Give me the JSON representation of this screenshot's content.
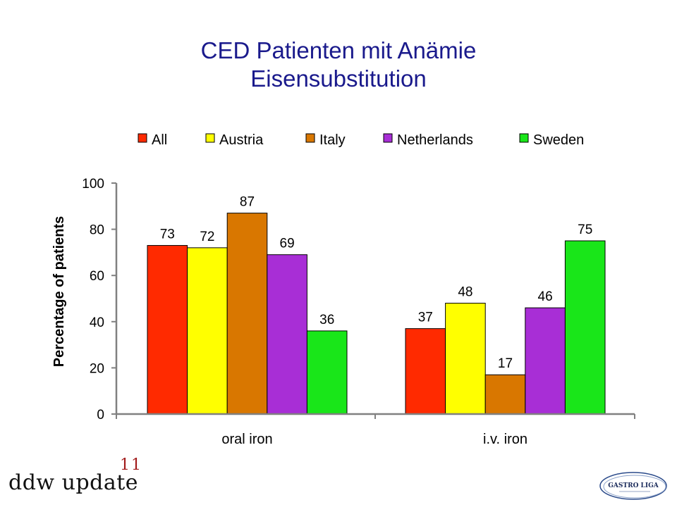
{
  "title": {
    "line1": "CED Patienten mit Anämie",
    "line2": "Eisensubstitution"
  },
  "footer": {
    "text": "ddw update",
    "superscript": "11",
    "logo_text": "GASTRO LIGA"
  },
  "colors": {
    "title": "#1a1a8c",
    "All": "#ff2a00",
    "Austria": "#ffff00",
    "Italy": "#d97700",
    "Netherlands": "#a82ed6",
    "Sweden": "#19e619"
  },
  "chart_data": {
    "type": "bar",
    "categories": [
      "oral iron",
      "i.v. iron"
    ],
    "series": [
      {
        "name": "All",
        "color": "#ff2a00",
        "values": [
          73,
          37
        ]
      },
      {
        "name": "Austria",
        "color": "#ffff00",
        "values": [
          72,
          48
        ]
      },
      {
        "name": "Italy",
        "color": "#d97700",
        "values": [
          87,
          17
        ]
      },
      {
        "name": "Netherlands",
        "color": "#a82ed6",
        "values": [
          69,
          46
        ]
      },
      {
        "name": "Sweden",
        "color": "#19e619",
        "values": [
          36,
          75
        ]
      }
    ],
    "ylabel": "Percentage of patients",
    "xlabel": "",
    "ylim": [
      0,
      100
    ],
    "yticks": [
      "0",
      "20",
      "40",
      "60",
      "80",
      "100"
    ],
    "grid": false,
    "legend_position": "top",
    "data_labels": true
  }
}
